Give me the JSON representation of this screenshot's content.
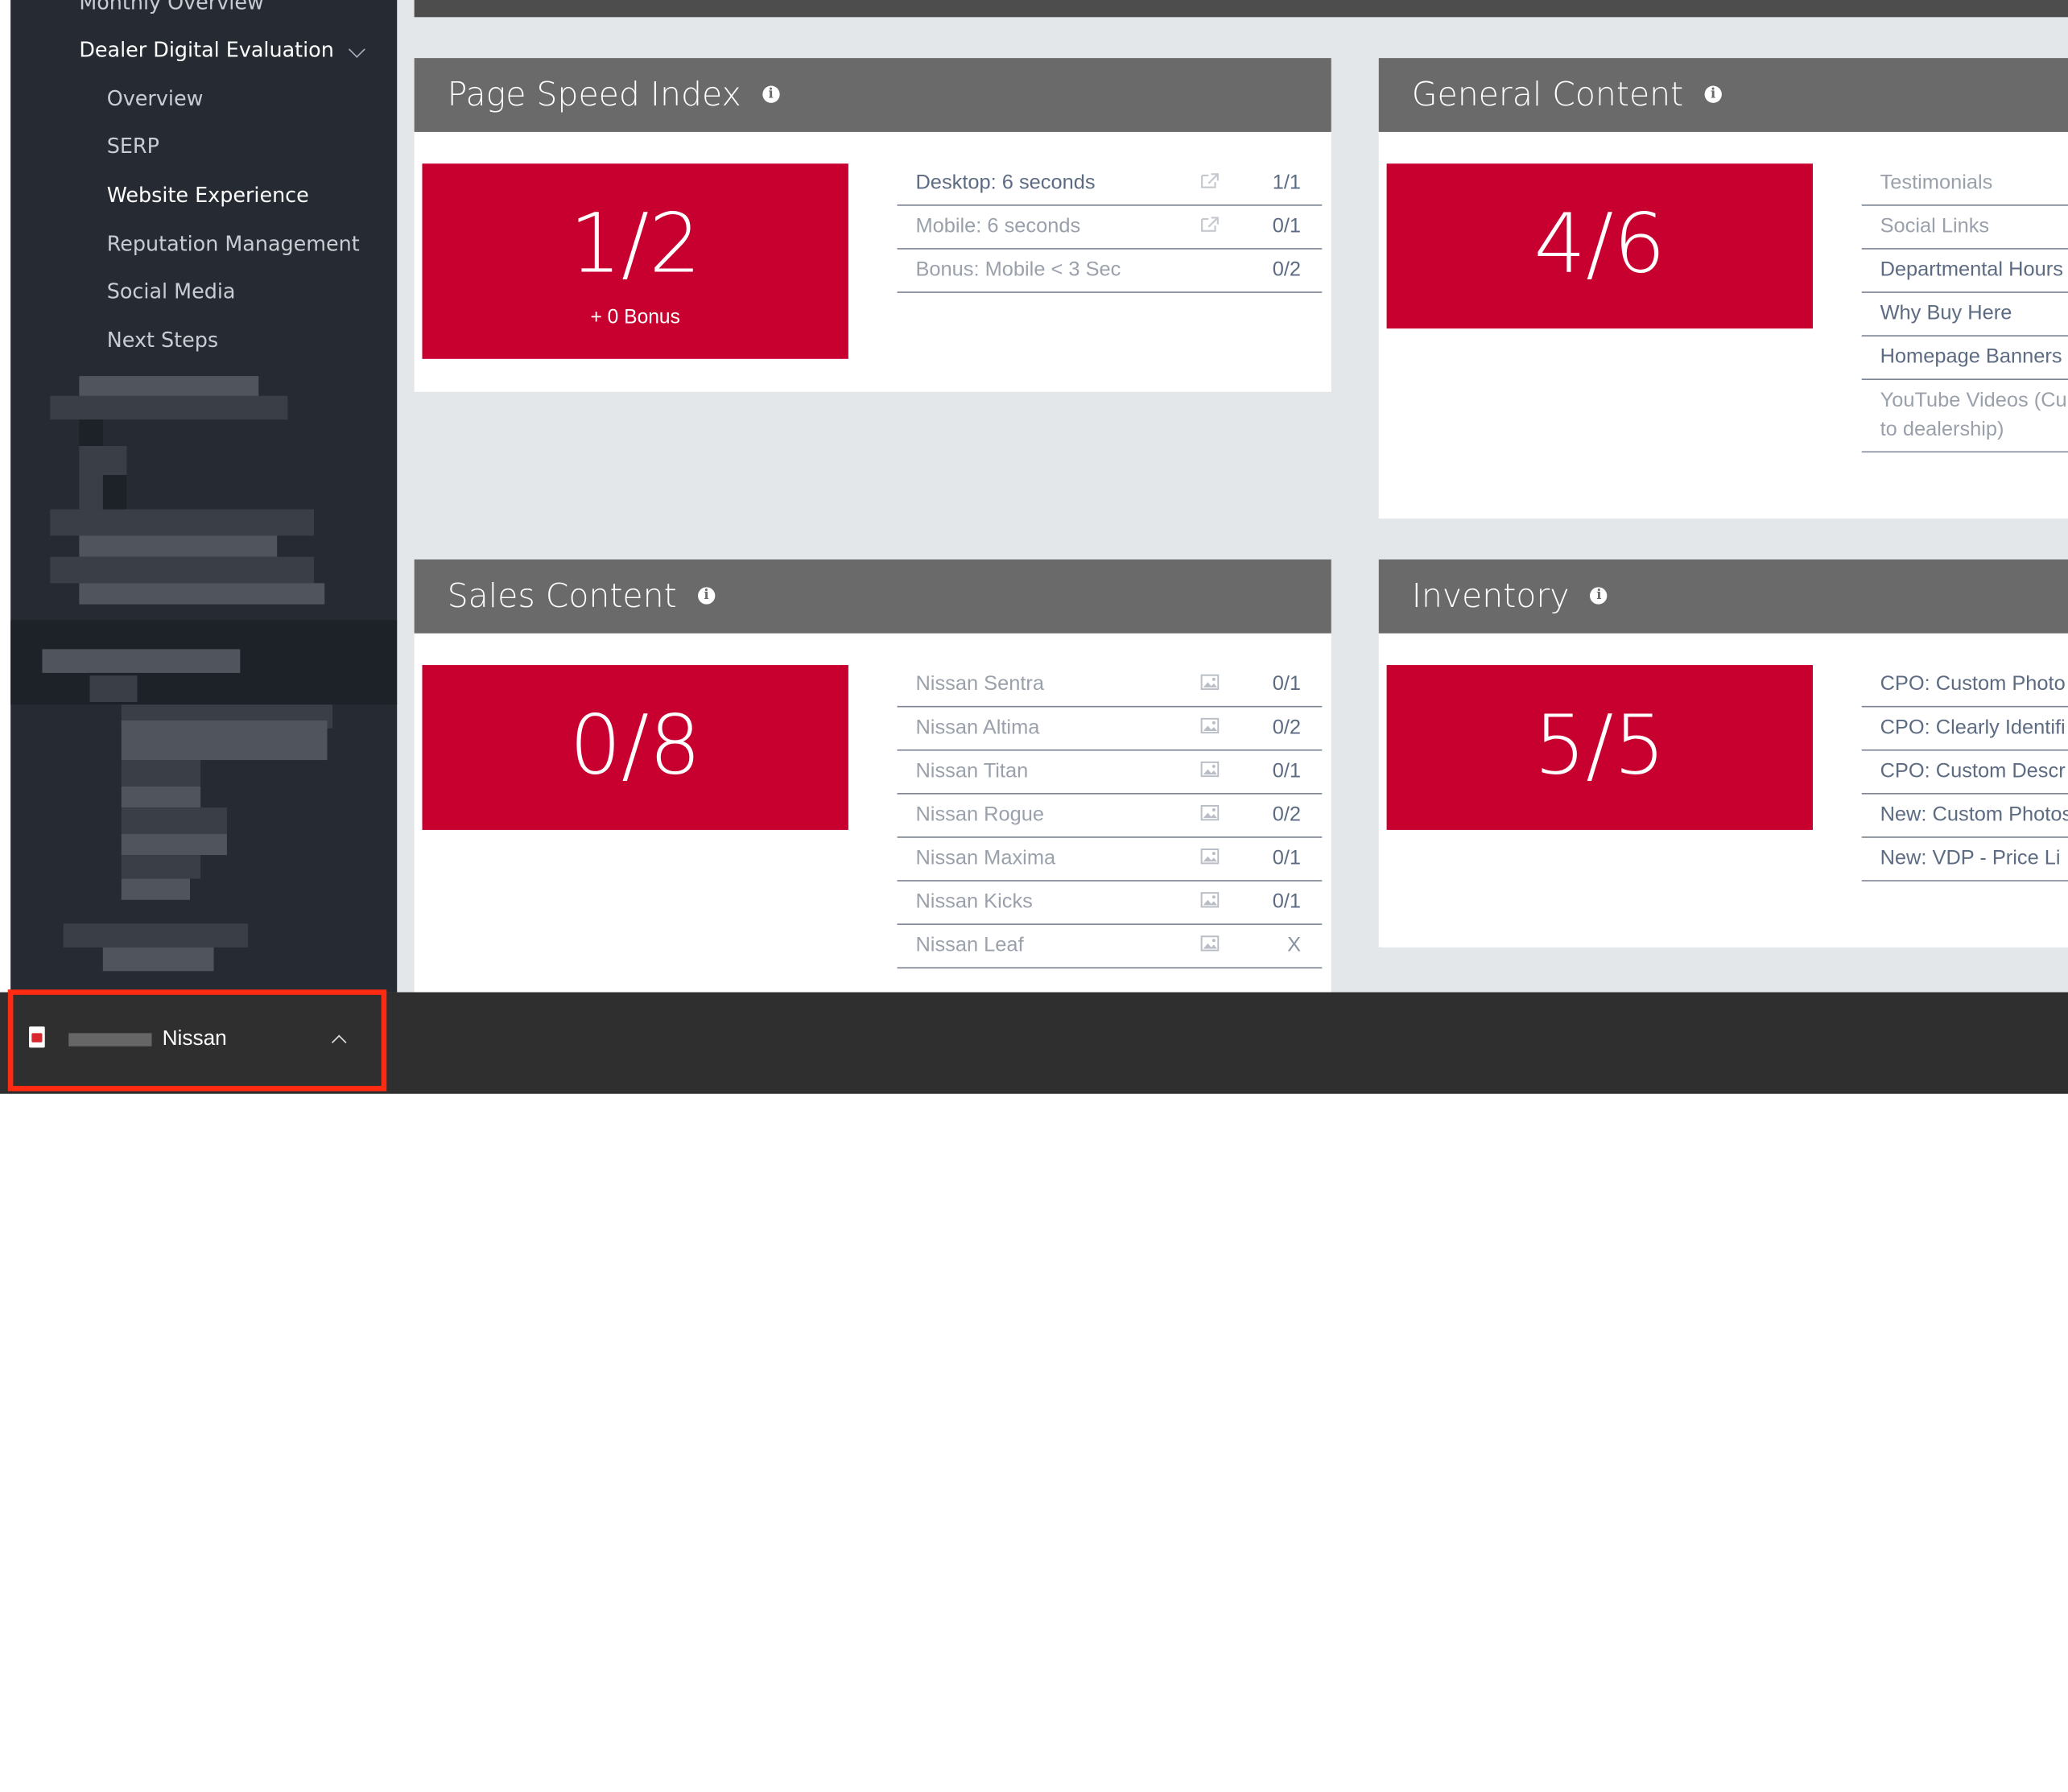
{
  "sidebar": {
    "items": [
      {
        "label": "Monthly Overview"
      },
      {
        "label": "Dealer Digital Evaluation"
      },
      {
        "label": "Overview"
      },
      {
        "label": "SERP"
      },
      {
        "label": "Website Experience"
      },
      {
        "label": "Reputation Management"
      },
      {
        "label": "Social Media"
      },
      {
        "label": "Next Steps"
      }
    ],
    "active": "Website Experience"
  },
  "cards": {
    "page_speed": {
      "title": "Page Speed Index",
      "score": "1/2",
      "bonus": "+ 0 Bonus",
      "rows": [
        {
          "label": "Desktop: 6 seconds",
          "score": "1/1",
          "icon": "external-link-icon"
        },
        {
          "label": "Mobile: 6 seconds",
          "score": "0/1",
          "icon": "external-link-icon"
        },
        {
          "label": "Bonus: Mobile < 3 Sec",
          "score": "0/2"
        }
      ]
    },
    "general_content": {
      "title": "General Content",
      "score": "4/6",
      "rows": [
        {
          "label": "Testimonials"
        },
        {
          "label": "Social Links"
        },
        {
          "label": "Departmental Hours"
        },
        {
          "label": "Why Buy Here"
        },
        {
          "label": "Homepage Banners"
        },
        {
          "label": "YouTube Videos (Cu"
        },
        {
          "label": "to dealership)"
        }
      ]
    },
    "sales_content": {
      "title": "Sales Content",
      "score": "0/8",
      "rows": [
        {
          "label": "Nissan Sentra",
          "score": "0/1",
          "icon": "image-icon"
        },
        {
          "label": "Nissan Altima",
          "score": "0/2",
          "icon": "image-icon"
        },
        {
          "label": "Nissan Titan",
          "score": "0/1",
          "icon": "image-icon"
        },
        {
          "label": "Nissan Rogue",
          "score": "0/2",
          "icon": "image-icon"
        },
        {
          "label": "Nissan Maxima",
          "score": "0/1",
          "icon": "image-icon"
        },
        {
          "label": "Nissan Kicks",
          "score": "0/1",
          "icon": "image-icon"
        },
        {
          "label": "Nissan Leaf",
          "score": "X",
          "icon": "image-icon"
        }
      ]
    },
    "inventory": {
      "title": "Inventory",
      "score": "5/5",
      "rows": [
        {
          "label": "CPO: Custom Photo"
        },
        {
          "label": "CPO: Clearly Identifi"
        },
        {
          "label": "CPO: Custom Descr"
        },
        {
          "label": "New: Custom Photos"
        },
        {
          "label": "New: VDP - Price Li"
        }
      ]
    }
  },
  "bottom": {
    "label": "Nissan",
    "icon": "pdf-file-icon"
  },
  "colors": {
    "accent": "#c8002f",
    "sidebar": "#262b33",
    "header": "#6a6a6a",
    "highlight": "#ff2a12"
  }
}
